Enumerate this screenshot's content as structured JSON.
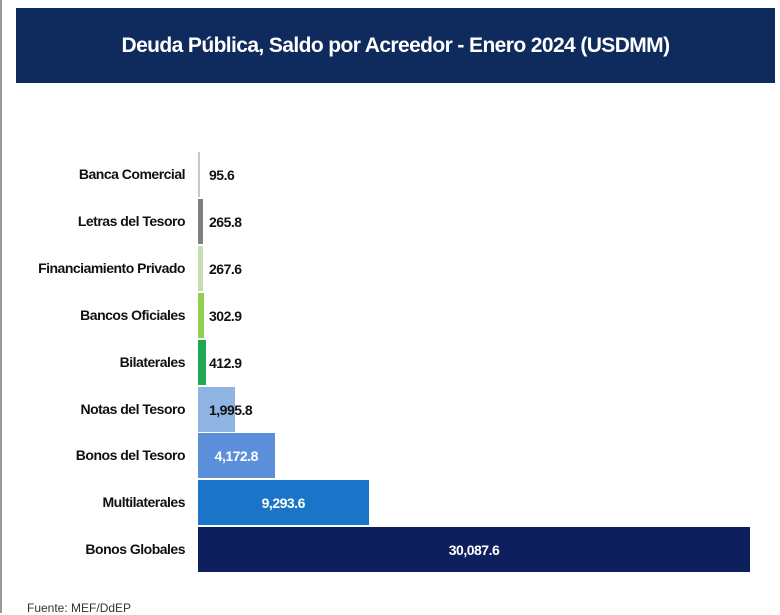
{
  "chart_data": {
    "type": "bar",
    "orientation": "horizontal",
    "title": "Deuda Pública, Saldo por Acreedor  - Enero 2024 (USDMM)",
    "categories": [
      "Banca Comercial",
      "Letras del Tesoro",
      "Financiamiento Privado",
      "Bancos Oficiales",
      "Bilaterales",
      "Notas del Tesoro",
      "Bonos del Tesoro",
      "Multilaterales",
      "Bonos Globales"
    ],
    "values": [
      95.6,
      265.8,
      267.6,
      302.9,
      412.9,
      1995.8,
      4172.8,
      9293.6,
      30087.6
    ],
    "labels": [
      "95.6",
      "265.8",
      "267.6",
      "302.9",
      "412.9",
      "1,995.8",
      "4,172.8",
      "9,293.6",
      "30,087.6"
    ],
    "colors": [
      "#c8c8c8",
      "#7f7f7f",
      "#c6dfb2",
      "#92d050",
      "#1fa84f",
      "#8fb4e3",
      "#5b8fd9",
      "#1a75c9",
      "#0d1f5c"
    ],
    "xlim": [
      0,
      30087.6
    ],
    "grid": false,
    "legend": "none",
    "source": "Fuente: MEF/DdEP"
  }
}
